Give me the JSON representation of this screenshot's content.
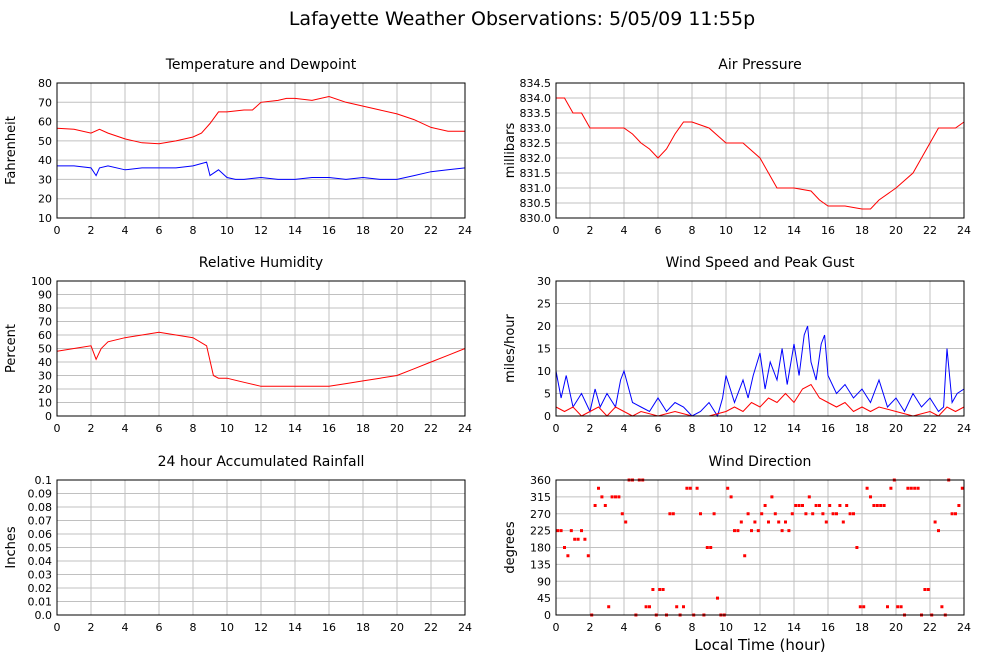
{
  "page": {
    "title": "Lafayette Weather Observations: 5/05/09 11:55p",
    "xlabel": "Local Time (hour)"
  },
  "colors": {
    "red": "#ff0000",
    "blue": "#0000ff",
    "grid": "#c0c0c0"
  },
  "chart_data": [
    {
      "type": "line",
      "title": "Temperature and Dewpoint",
      "ylabel": "Fahrenheit",
      "xlim": [
        0,
        24
      ],
      "ylim": [
        10,
        80
      ],
      "xticks": [
        0,
        2,
        4,
        6,
        8,
        10,
        12,
        14,
        16,
        18,
        20,
        22,
        24
      ],
      "yticks": [
        "10",
        "20",
        "30",
        "40",
        "50",
        "60",
        "70",
        "80"
      ],
      "series": [
        {
          "color": "#ff0000",
          "x": [
            0,
            1,
            2,
            2.5,
            3,
            4,
            5,
            6,
            7,
            8,
            8.5,
            9,
            9.5,
            10,
            11,
            11.5,
            12,
            13,
            13.5,
            14,
            15,
            16,
            17,
            18,
            19,
            20,
            21,
            22,
            23,
            24
          ],
          "y": [
            56.5,
            56,
            54,
            56,
            54,
            51,
            49,
            48.5,
            50,
            52,
            54,
            59,
            65,
            65,
            66,
            66,
            70,
            71,
            72,
            72,
            71,
            73,
            70,
            68,
            66,
            64,
            61,
            57,
            55,
            55
          ]
        },
        {
          "color": "#0000ff",
          "x": [
            0,
            1,
            2,
            2.3,
            2.5,
            3,
            4,
            5,
            6,
            7,
            8,
            8.8,
            9,
            9.5,
            10,
            10.5,
            11,
            12,
            13,
            14,
            15,
            16,
            17,
            18,
            19,
            20,
            21,
            22,
            23,
            24
          ],
          "y": [
            37,
            37,
            36,
            32,
            36,
            37,
            35,
            36,
            36,
            36,
            37,
            39,
            32,
            35,
            31,
            30,
            30,
            31,
            30,
            30,
            31,
            31,
            30,
            31,
            30,
            30,
            32,
            34,
            35,
            36
          ]
        }
      ]
    },
    {
      "type": "line",
      "title": "Air Pressure",
      "ylabel": "millibars",
      "xlim": [
        0,
        24
      ],
      "ylim": [
        830.0,
        834.5
      ],
      "xticks": [
        0,
        2,
        4,
        6,
        8,
        10,
        12,
        14,
        16,
        18,
        20,
        22,
        24
      ],
      "yticks": [
        "830.0",
        "830.5",
        "831.0",
        "831.5",
        "832.0",
        "832.5",
        "833.0",
        "833.5",
        "834.0",
        "834.5"
      ],
      "series": [
        {
          "color": "#ff0000",
          "x": [
            0,
            0.5,
            1,
            1.5,
            2,
            3,
            4,
            4.5,
            5,
            5.5,
            6,
            6.5,
            7,
            7.5,
            8,
            9,
            10,
            11,
            12,
            12.5,
            13,
            14,
            15,
            15.5,
            16,
            17,
            18,
            18.5,
            19,
            20,
            21,
            21.5,
            22,
            22.5,
            23,
            23.5,
            24
          ],
          "y": [
            834.0,
            834.0,
            833.5,
            833.5,
            833.0,
            833.0,
            833.0,
            832.8,
            832.5,
            832.3,
            832.0,
            832.3,
            832.8,
            833.2,
            833.2,
            833.0,
            832.5,
            832.5,
            832.0,
            831.5,
            831.0,
            831.0,
            830.9,
            830.6,
            830.4,
            830.4,
            830.3,
            830.3,
            830.6,
            831.0,
            831.5,
            832.0,
            832.5,
            833.0,
            833.0,
            833.0,
            833.2
          ]
        }
      ]
    },
    {
      "type": "line",
      "title": "Relative Humidity",
      "ylabel": "Percent",
      "xlim": [
        0,
        24
      ],
      "ylim": [
        0,
        100
      ],
      "xticks": [
        0,
        2,
        4,
        6,
        8,
        10,
        12,
        14,
        16,
        18,
        20,
        22,
        24
      ],
      "yticks": [
        "0",
        "10",
        "20",
        "30",
        "40",
        "50",
        "60",
        "70",
        "80",
        "90",
        "100"
      ],
      "series": [
        {
          "color": "#ff0000",
          "x": [
            0,
            1,
            2,
            2.3,
            2.6,
            3,
            4,
            5,
            6,
            7,
            8,
            8.8,
            9.2,
            9.5,
            10,
            11,
            12,
            13,
            14,
            15,
            16,
            17,
            18,
            19,
            20,
            21,
            22,
            23,
            24
          ],
          "y": [
            48,
            50,
            52,
            42,
            50,
            55,
            58,
            60,
            62,
            60,
            58,
            52,
            30,
            28,
            28,
            25,
            22,
            22,
            22,
            22,
            22,
            24,
            26,
            28,
            30,
            35,
            40,
            45,
            50
          ]
        }
      ]
    },
    {
      "type": "line",
      "title": "Wind Speed and Peak Gust",
      "ylabel": "miles/hour",
      "xlim": [
        0,
        24
      ],
      "ylim": [
        0,
        30
      ],
      "xticks": [
        0,
        2,
        4,
        6,
        8,
        10,
        12,
        14,
        16,
        18,
        20,
        22,
        24
      ],
      "yticks": [
        "0",
        "5",
        "10",
        "15",
        "20",
        "25",
        "30"
      ],
      "series": [
        {
          "color": "#0000ff",
          "x": [
            0,
            0.3,
            0.6,
            1,
            1.5,
            2,
            2.3,
            2.6,
            3,
            3.5,
            3.8,
            4,
            4.5,
            5,
            5.5,
            6,
            6.5,
            7,
            7.5,
            8,
            8.5,
            9,
            9.5,
            9.8,
            10,
            10.5,
            11,
            11.3,
            11.6,
            12,
            12.3,
            12.6,
            13,
            13.3,
            13.6,
            14,
            14.3,
            14.6,
            14.8,
            15,
            15.3,
            15.6,
            15.8,
            16,
            16.5,
            17,
            17.5,
            18,
            18.5,
            19,
            19.5,
            20,
            20.5,
            21,
            21.5,
            22,
            22.5,
            22.8,
            23,
            23.3,
            23.6,
            24
          ],
          "y": [
            10,
            4,
            9,
            2,
            5,
            1,
            6,
            2,
            5,
            2,
            8,
            10,
            3,
            2,
            1,
            4,
            1,
            3,
            2,
            0,
            1,
            3,
            0,
            4,
            9,
            3,
            8,
            4,
            9,
            14,
            6,
            12,
            8,
            15,
            7,
            16,
            9,
            18,
            20,
            12,
            8,
            16,
            18,
            9,
            5,
            7,
            4,
            6,
            3,
            8,
            2,
            4,
            1,
            5,
            2,
            4,
            1,
            2,
            15,
            3,
            5,
            6
          ]
        },
        {
          "color": "#ff0000",
          "x": [
            0,
            0.5,
            1,
            1.5,
            2,
            2.5,
            3,
            3.5,
            4,
            4.5,
            5,
            6,
            7,
            8,
            9,
            10,
            10.5,
            11,
            11.5,
            12,
            12.5,
            13,
            13.5,
            14,
            14.5,
            15,
            15.5,
            16,
            16.5,
            17,
            17.5,
            18,
            18.5,
            19,
            20,
            21,
            22,
            22.5,
            23,
            23.5,
            24
          ],
          "y": [
            2,
            1,
            2,
            0,
            1,
            2,
            0,
            2,
            1,
            0,
            1,
            0,
            1,
            0,
            0,
            1,
            2,
            1,
            3,
            2,
            4,
            3,
            5,
            3,
            6,
            7,
            4,
            3,
            2,
            3,
            1,
            2,
            1,
            2,
            1,
            0,
            1,
            0,
            2,
            1,
            2
          ]
        }
      ]
    },
    {
      "type": "line",
      "title": "24 hour Accumulated Rainfall",
      "ylabel": "Inches",
      "xlim": [
        0,
        24
      ],
      "ylim": [
        0,
        0.1
      ],
      "xticks": [
        0,
        2,
        4,
        6,
        8,
        10,
        12,
        14,
        16,
        18,
        20,
        22,
        24
      ],
      "yticks": [
        "0.0",
        "0.01",
        "0.02",
        "0.03",
        "0.04",
        "0.05",
        "0.06",
        "0.07",
        "0.08",
        "0.09",
        "0.1"
      ],
      "series": [
        {
          "color": "#ff0000",
          "x": [
            0,
            24
          ],
          "y": [
            0,
            0
          ]
        }
      ]
    },
    {
      "type": "scatter",
      "title": "Wind Direction",
      "ylabel": "degrees",
      "xlim": [
        0,
        24
      ],
      "ylim": [
        0,
        360
      ],
      "xticks": [
        0,
        2,
        4,
        6,
        8,
        10,
        12,
        14,
        16,
        18,
        20,
        22,
        24
      ],
      "yticks": [
        "0",
        "45",
        "90",
        "135",
        "180",
        "225",
        "270",
        "315",
        "360"
      ],
      "series": [
        {
          "color": "#ff0000",
          "x": [
            0.1,
            0.3,
            0.5,
            0.7,
            0.9,
            1.1,
            1.3,
            1.5,
            1.7,
            1.9,
            2.1,
            2.3,
            2.5,
            2.7,
            2.9,
            3.1,
            3.3,
            3.5,
            3.7,
            3.9,
            4.1,
            4.3,
            4.5,
            4.7,
            4.9,
            5.1,
            5.3,
            5.5,
            5.7,
            5.9,
            6.1,
            6.3,
            6.5,
            6.7,
            6.9,
            7.1,
            7.3,
            7.5,
            7.7,
            7.9,
            8.1,
            8.3,
            8.5,
            8.7,
            8.9,
            9.1,
            9.3,
            9.5,
            9.7,
            9.9,
            10.1,
            10.3,
            10.5,
            10.7,
            10.9,
            11.1,
            11.3,
            11.5,
            11.7,
            11.9,
            12.1,
            12.3,
            12.5,
            12.7,
            12.9,
            13.1,
            13.3,
            13.5,
            13.7,
            13.9,
            14.1,
            14.3,
            14.5,
            14.7,
            14.9,
            15.1,
            15.3,
            15.5,
            15.7,
            15.9,
            16.1,
            16.3,
            16.5,
            16.7,
            16.9,
            17.1,
            17.3,
            17.5,
            17.7,
            17.9,
            18.1,
            18.3,
            18.5,
            18.7,
            18.9,
            19.1,
            19.3,
            19.5,
            19.7,
            19.9,
            20.1,
            20.3,
            20.5,
            20.7,
            20.9,
            21.1,
            21.3,
            21.5,
            21.7,
            21.9,
            22.1,
            22.3,
            22.5,
            22.7,
            22.9,
            23.1,
            23.3,
            23.5,
            23.7,
            23.9
          ],
          "y": [
            225,
            225,
            180,
            158,
            225,
            202,
            202,
            225,
            202,
            158,
            0,
            292,
            338,
            315,
            292,
            22,
            315,
            315,
            315,
            270,
            248,
            360,
            360,
            0,
            360,
            360,
            22,
            22,
            68,
            0,
            68,
            68,
            0,
            270,
            270,
            22,
            0,
            22,
            338,
            338,
            0,
            338,
            270,
            0,
            180,
            180,
            270,
            45,
            0,
            0,
            338,
            315,
            225,
            225,
            248,
            158,
            270,
            225,
            248,
            225,
            270,
            292,
            248,
            315,
            270,
            248,
            225,
            248,
            225,
            270,
            292,
            292,
            292,
            270,
            315,
            270,
            292,
            292,
            270,
            248,
            292,
            270,
            270,
            292,
            248,
            292,
            270,
            270,
            180,
            22,
            22,
            338,
            315,
            292,
            292,
            292,
            292,
            22,
            338,
            360,
            22,
            22,
            0,
            338,
            338,
            338,
            338,
            0,
            68,
            68,
            0,
            248,
            225,
            22,
            0,
            360,
            270,
            270,
            292,
            338
          ]
        }
      ]
    }
  ]
}
